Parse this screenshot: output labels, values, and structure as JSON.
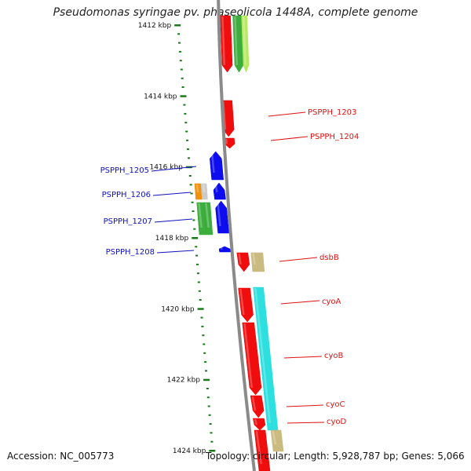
{
  "header": {
    "title": "Pseudomonas syringae pv. phaseolicola 1448A, complete genome"
  },
  "footer": {
    "accession": "Accession: NC_005773",
    "summary": "Topology: circular; Length: 5,928,787 bp; Genes: 5,066"
  },
  "colors": {
    "backbone": "#8a8a8a",
    "tick": "#1a7a1a",
    "label_forward": "#dd1111",
    "label_reverse": "#1111bb",
    "red": "#ee0000",
    "blue": "#0000ee",
    "green": "#33aa33",
    "lightgreen": "#b4e85a",
    "cyan": "#22dddd",
    "khaki": "#c8b77a",
    "orange": "#f08c00",
    "grey": "#c8c8c8"
  },
  "axis": {
    "unit": "kbp",
    "start_kbp": 1412,
    "end_kbp": 1424,
    "major_ticks": [
      {
        "kbp": 1412,
        "label": "1412 kbp"
      },
      {
        "kbp": 1414,
        "label": "1414 kbp"
      },
      {
        "kbp": 1416,
        "label": "1416 kbp"
      },
      {
        "kbp": 1418,
        "label": "1418 kbp"
      },
      {
        "kbp": 1420,
        "label": "1420 kbp"
      },
      {
        "kbp": 1422,
        "label": "1422 kbp"
      },
      {
        "kbp": 1424,
        "label": "1424 kbp"
      }
    ]
  },
  "labels": [
    {
      "text": "PSPPH_1203",
      "strand": "forward"
    },
    {
      "text": "PSPPH_1204",
      "strand": "forward"
    },
    {
      "text": "PSPPH_1205",
      "strand": "reverse"
    },
    {
      "text": "PSPPH_1206",
      "strand": "reverse"
    },
    {
      "text": "PSPPH_1207",
      "strand": "reverse"
    },
    {
      "text": "PSPPH_1208",
      "strand": "reverse"
    },
    {
      "text": "dsbB",
      "strand": "forward"
    },
    {
      "text": "cyoA",
      "strand": "forward"
    },
    {
      "text": "cyoB",
      "strand": "forward"
    },
    {
      "text": "cyoC",
      "strand": "forward"
    },
    {
      "text": "cyoD",
      "strand": "forward"
    }
  ]
}
